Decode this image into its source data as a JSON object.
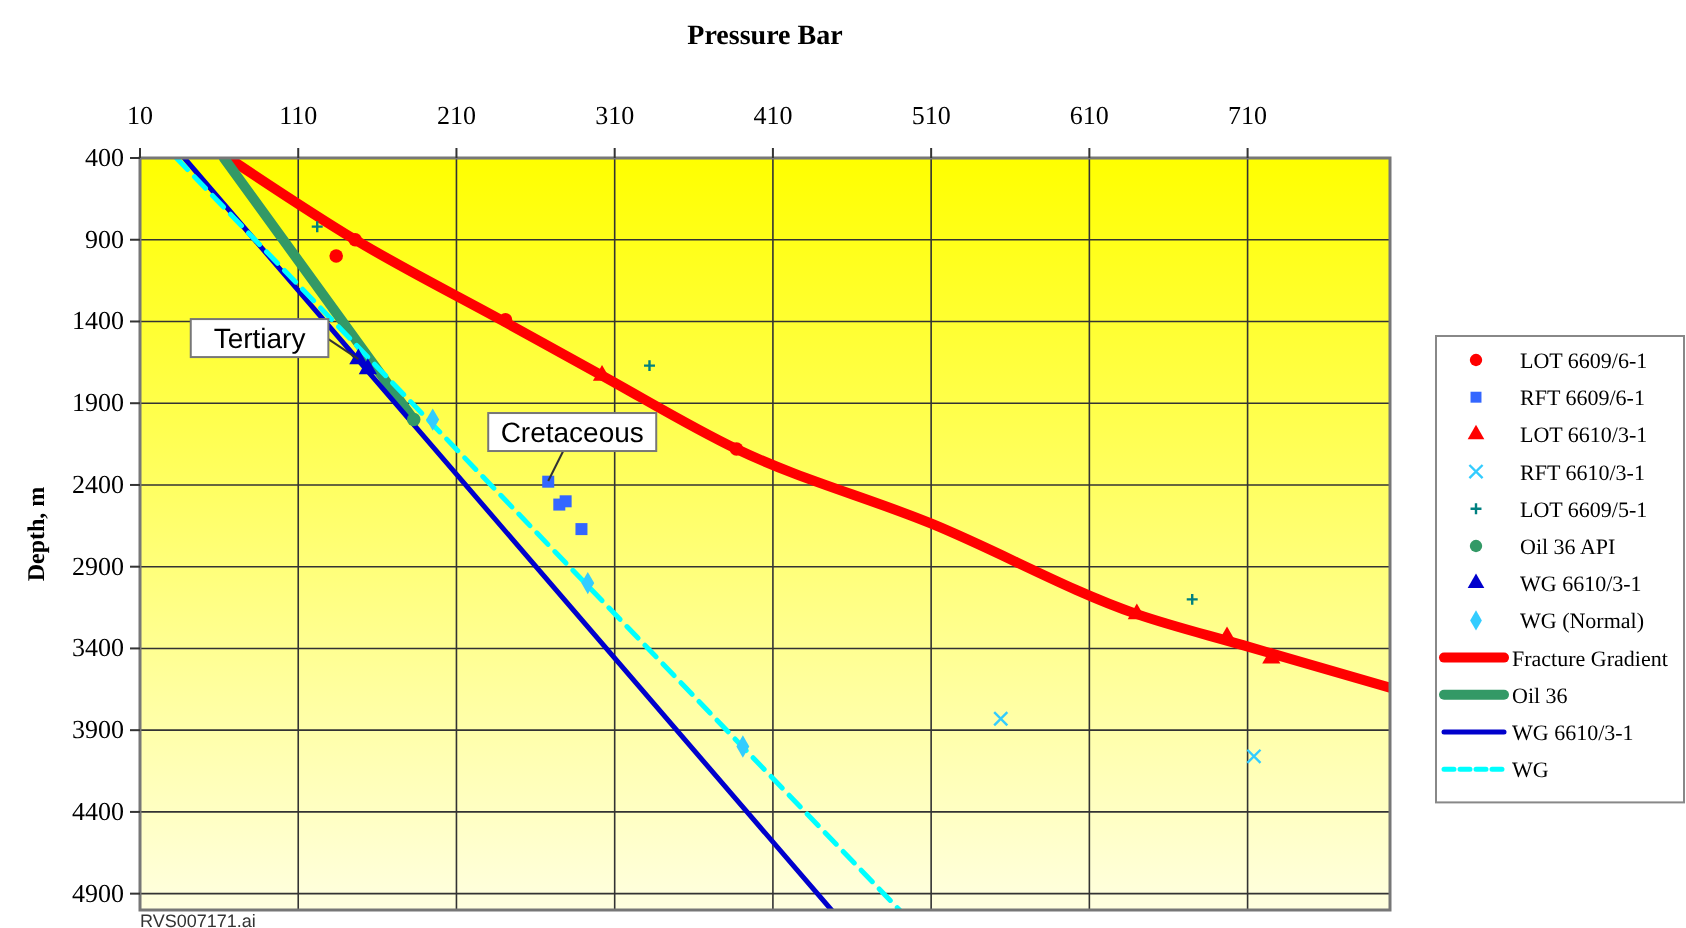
{
  "chart_data": {
    "type": "scatter",
    "xlabel": "Pressure Bar",
    "ylabel": "Depth, m",
    "xlim": [
      10,
      800
    ],
    "xticks": [
      10,
      110,
      210,
      310,
      410,
      510,
      610,
      710
    ],
    "ylim": [
      5000,
      400
    ],
    "yticks": [
      400,
      900,
      1400,
      1900,
      2400,
      2900,
      3400,
      3900,
      4400,
      4900
    ],
    "grid": true,
    "legend": "right",
    "series": [
      {
        "name": "LOT 6609/6-1",
        "marker": "circle",
        "color": "#ff0000",
        "x": [
          134,
          146,
          241,
          387
        ],
        "values": [
          1000,
          900,
          1390,
          2180
        ]
      },
      {
        "name": "RFT 6609/6-1",
        "marker": "square",
        "color": "#3366ff",
        "x": [
          268,
          275,
          279,
          289
        ],
        "values": [
          2380,
          2520,
          2500,
          2670
        ]
      },
      {
        "name": "LOT 6610/3-1",
        "marker": "triangle",
        "color": "#ff0000",
        "x": [
          302,
          640,
          697,
          725
        ],
        "values": [
          1730,
          3190,
          3330,
          3460
        ]
      },
      {
        "name": "RFT 6610/3-1",
        "marker": "cross",
        "color": "#33ccff",
        "x": [
          554,
          714
        ],
        "values": [
          3830,
          4060
        ]
      },
      {
        "name": "LOT 6609/5-1",
        "marker": "plus",
        "color": "#008080",
        "x": [
          122,
          332,
          675
        ],
        "values": [
          820,
          1670,
          3100
        ]
      },
      {
        "name": "Oil 36 API",
        "marker": "circle",
        "color": "#339966",
        "x": [
          183
        ],
        "values": [
          2000
        ]
      },
      {
        "name": "WG 6610/3-1",
        "marker": "triangle",
        "color": "#0000cc",
        "x": [
          148,
          154
        ],
        "values": [
          1630,
          1690
        ]
      },
      {
        "name": "WG (Normal)",
        "marker": "diamond",
        "color": "#33ccff",
        "x": [
          195,
          293,
          391
        ],
        "values": [
          2000,
          3000,
          4000
        ]
      },
      {
        "name": "Fracture Gradient",
        "type": "line",
        "line_style": "solid",
        "color": "#ff0000",
        "x": [
          66,
          146,
          240,
          300,
          387,
          511,
          640,
          707,
          800
        ],
        "values": [
          400,
          900,
          1400,
          1720,
          2180,
          2640,
          3190,
          3380,
          3640
        ]
      },
      {
        "name": "Oil 36",
        "type": "line",
        "line_style": "solid",
        "color": "#339966",
        "x": [
          63,
          183
        ],
        "values": [
          400,
          2000
        ]
      },
      {
        "name": "WG 6610/3-1",
        "type": "line",
        "line_style": "solid",
        "color": "#0000cc",
        "x": [
          38,
          447
        ],
        "values": [
          400,
          5000
        ]
      },
      {
        "name": "WG",
        "type": "line",
        "line_style": "dashed",
        "color": "#00ffff",
        "x": [
          33,
          490
        ],
        "values": [
          400,
          5000
        ]
      }
    ],
    "annotations": [
      {
        "text": "Tertiary",
        "x": 148,
        "y": 1630
      },
      {
        "text": "Cretaceous",
        "x": 268,
        "y": 2376
      },
      "RVS007171.ai"
    ]
  }
}
